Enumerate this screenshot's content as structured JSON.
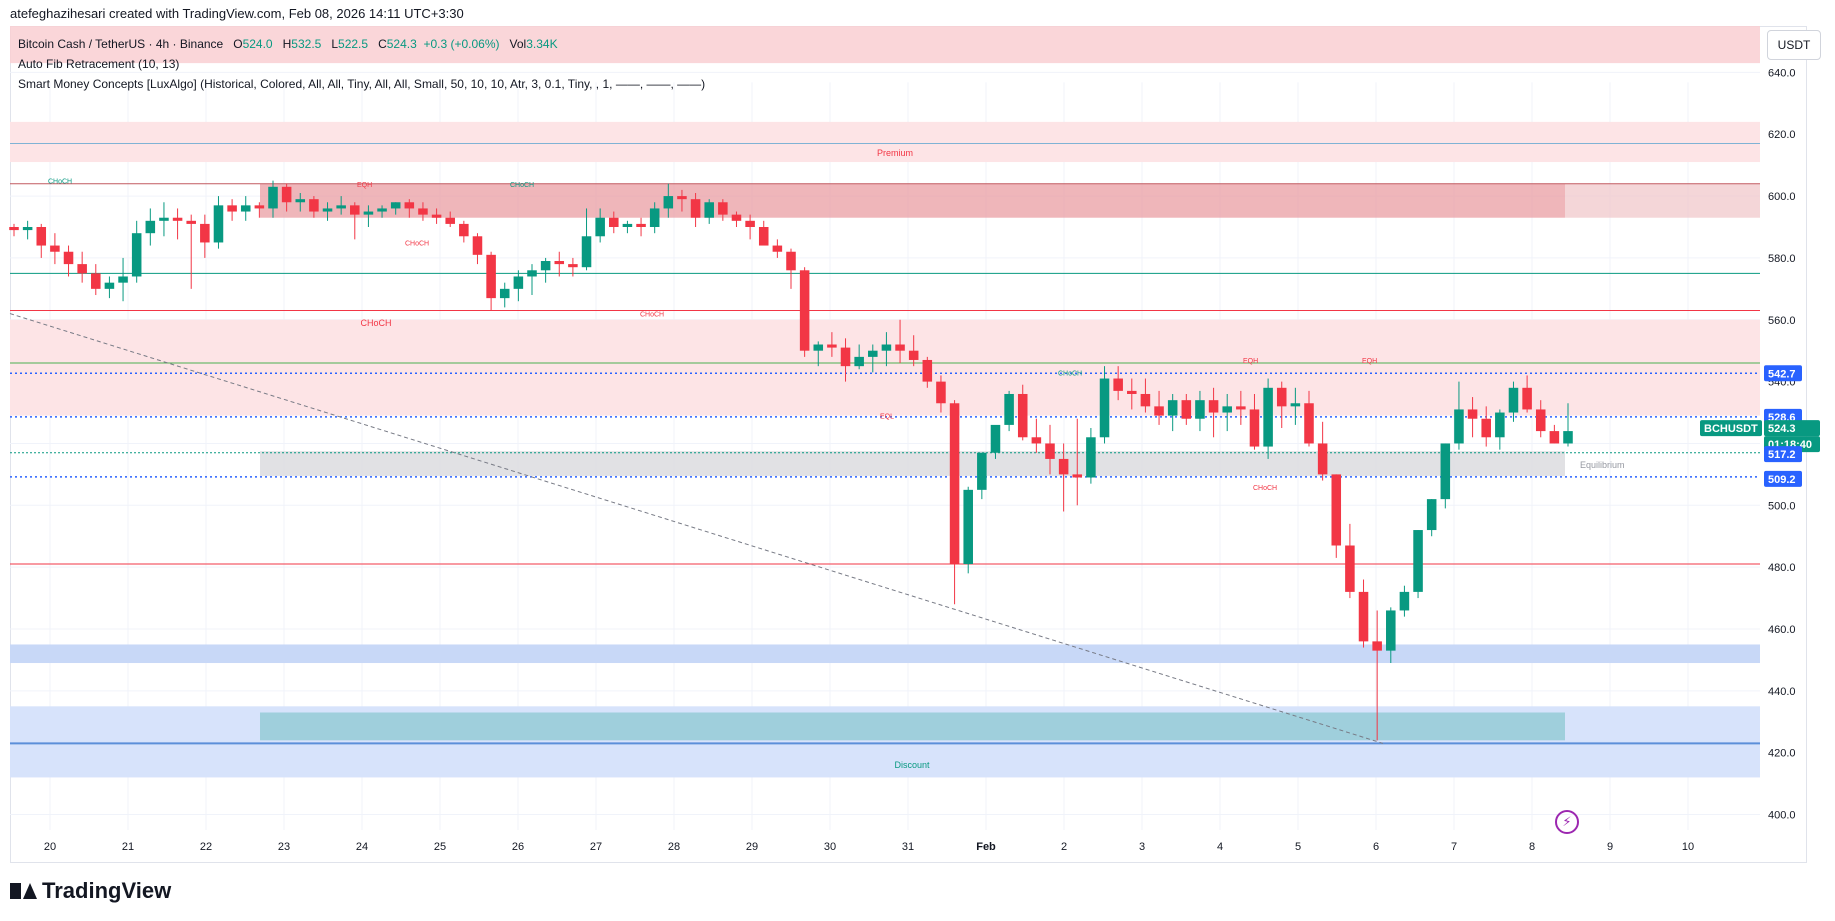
{
  "header": {
    "text": "atefeghazihesari created with TradingView.com, Feb 08, 2026 14:11 UTC+3:30"
  },
  "legend": {
    "symbol": "Bitcoin Cash / TetherUS · 4h · Binance",
    "o_label": "O",
    "o_value": "524.0",
    "h_label": "H",
    "h_value": "532.5",
    "l_label": "L",
    "l_value": "522.5",
    "c_label": "C",
    "c_value": "524.3",
    "change": "+0.3 (+0.06%)",
    "vol_label": "Vol",
    "vol_value": "3.34K",
    "indicator1": "Auto Fib Retracement (10, 13)",
    "indicator2": "Smart Money Concepts [LuxAlgo] (Historical, Colored, All, All, Tiny, All, All, Small, 50, 10, 10, Atr, 3, 0.1, Tiny, , 1, ——, ——, ——)"
  },
  "currency_button": "USDT",
  "logo_text": "TradingView",
  "colors": {
    "up": "#089981",
    "down": "#f23645",
    "premium": "#f7c6c9",
    "discount": "#c8d8f7",
    "blue_label": "#2962ff",
    "green_label": "#089981"
  },
  "chart_data": {
    "type": "candlestick",
    "symbol": "BCHUSDT",
    "timeframe": "4h",
    "ylim": [
      395,
      655
    ],
    "y_ticks": [
      400,
      420,
      440,
      460,
      480,
      500,
      520,
      540,
      560,
      580,
      600,
      620,
      640
    ],
    "y_tick_labels": [
      "400.0",
      "420.0",
      "440.0",
      "460.0",
      "480.0",
      "500.0",
      "520.0",
      "540.0",
      "560.0",
      "580.0",
      "600.0",
      "620.0",
      "640.0"
    ],
    "x_ticks": [
      "20",
      "21",
      "22",
      "23",
      "24",
      "25",
      "26",
      "27",
      "28",
      "29",
      "30",
      "31",
      "Feb",
      "2",
      "3",
      "4",
      "5",
      "6",
      "7",
      "8",
      "9",
      "10"
    ],
    "candles": [
      [
        590,
        591,
        587,
        589
      ],
      [
        589,
        592,
        586,
        590
      ],
      [
        590,
        591,
        580,
        584
      ],
      [
        584,
        588,
        578,
        582
      ],
      [
        582,
        584,
        574,
        578
      ],
      [
        578,
        582,
        572,
        575
      ],
      [
        575,
        578,
        568,
        570
      ],
      [
        570,
        574,
        567,
        572
      ],
      [
        572,
        580,
        566,
        574
      ],
      [
        574,
        592,
        572,
        588
      ],
      [
        588,
        596,
        584,
        592
      ],
      [
        592,
        598,
        587,
        593
      ],
      [
        593,
        596,
        586,
        592
      ],
      [
        592,
        594,
        570,
        591
      ],
      [
        591,
        594,
        580,
        585
      ],
      [
        585,
        600,
        583,
        597
      ],
      [
        597,
        599,
        592,
        595
      ],
      [
        595,
        600,
        592,
        597
      ],
      [
        597,
        598,
        593,
        596
      ],
      [
        596,
        605,
        593,
        603
      ],
      [
        603,
        604,
        595,
        598
      ],
      [
        598,
        601,
        595,
        599
      ],
      [
        599,
        600,
        593,
        595
      ],
      [
        595,
        598,
        592,
        596
      ],
      [
        596,
        600,
        594,
        597
      ],
      [
        597,
        598,
        586,
        594
      ],
      [
        594,
        597,
        590,
        595
      ],
      [
        595,
        597,
        593,
        596
      ],
      [
        596,
        598,
        594,
        598
      ],
      [
        598,
        599,
        593,
        596
      ],
      [
        596,
        598,
        592,
        594
      ],
      [
        594,
        596,
        591,
        593
      ],
      [
        593,
        595,
        590,
        591
      ],
      [
        591,
        592,
        585,
        587
      ],
      [
        587,
        588,
        578,
        581
      ],
      [
        581,
        582,
        563,
        567
      ],
      [
        567,
        572,
        564,
        570
      ],
      [
        570,
        576,
        566,
        574
      ],
      [
        574,
        578,
        568,
        576
      ],
      [
        576,
        580,
        572,
        579
      ],
      [
        579,
        582,
        574,
        578
      ],
      [
        578,
        580,
        574,
        577
      ],
      [
        577,
        596,
        576,
        587
      ],
      [
        587,
        596,
        585,
        593
      ],
      [
        593,
        595,
        588,
        590
      ],
      [
        590,
        592,
        588,
        591
      ],
      [
        591,
        593,
        587,
        590
      ],
      [
        590,
        598,
        588,
        596
      ],
      [
        596,
        604,
        593,
        600
      ],
      [
        600,
        602,
        595,
        599
      ],
      [
        599,
        601,
        590,
        593
      ],
      [
        593,
        599,
        591,
        598
      ],
      [
        598,
        599,
        592,
        594
      ],
      [
        594,
        595,
        590,
        592
      ],
      [
        592,
        594,
        586,
        590
      ],
      [
        590,
        592,
        585,
        584
      ],
      [
        584,
        586,
        580,
        582
      ],
      [
        582,
        583,
        570,
        576
      ],
      [
        576,
        577,
        548,
        550
      ],
      [
        550,
        553,
        545,
        552
      ],
      [
        552,
        556,
        548,
        551
      ],
      [
        551,
        554,
        540,
        545
      ],
      [
        545,
        552,
        544,
        548
      ],
      [
        548,
        552,
        543,
        550
      ],
      [
        550,
        556,
        545,
        552
      ],
      [
        552,
        560,
        546,
        550
      ],
      [
        550,
        555,
        545,
        547
      ],
      [
        547,
        548,
        538,
        540
      ],
      [
        540,
        542,
        530,
        533
      ],
      [
        533,
        534,
        468,
        481
      ],
      [
        481,
        506,
        478,
        505
      ],
      [
        505,
        515,
        502,
        517
      ],
      [
        517,
        525,
        515,
        526
      ],
      [
        526,
        537,
        524,
        536
      ],
      [
        536,
        539,
        521,
        522
      ],
      [
        522,
        528,
        517,
        520
      ],
      [
        520,
        526,
        510,
        515
      ],
      [
        515,
        520,
        498,
        510
      ],
      [
        510,
        528,
        500,
        509
      ],
      [
        509,
        525,
        507,
        522
      ],
      [
        522,
        545,
        520,
        541
      ],
      [
        541,
        545,
        534,
        537
      ],
      [
        537,
        541,
        531,
        536
      ],
      [
        536,
        541,
        530,
        532
      ],
      [
        532,
        537,
        526,
        529
      ],
      [
        529,
        536,
        524,
        534
      ],
      [
        534,
        536,
        526,
        528
      ],
      [
        528,
        537,
        524,
        534
      ],
      [
        534,
        538,
        522,
        530
      ],
      [
        530,
        536,
        524,
        532
      ],
      [
        532,
        537,
        526,
        531
      ],
      [
        531,
        536,
        518,
        519
      ],
      [
        519,
        541,
        515,
        538
      ],
      [
        538,
        540,
        525,
        532
      ],
      [
        532,
        538,
        526,
        533
      ],
      [
        533,
        537,
        519,
        520
      ],
      [
        520,
        527,
        508,
        510
      ],
      [
        510,
        510,
        483,
        487
      ],
      [
        487,
        494,
        470,
        472
      ],
      [
        472,
        476,
        454,
        456
      ],
      [
        456,
        466,
        424,
        453
      ],
      [
        453,
        467,
        449,
        466
      ],
      [
        466,
        474,
        464,
        472
      ],
      [
        472,
        492,
        470,
        492
      ],
      [
        492,
        502,
        490,
        502
      ],
      [
        502,
        520,
        499,
        520
      ],
      [
        520,
        540,
        518,
        531
      ],
      [
        531,
        535,
        522,
        528
      ],
      [
        528,
        532,
        519,
        522
      ],
      [
        522,
        531,
        518,
        530
      ],
      [
        530,
        540,
        527,
        538
      ],
      [
        538,
        542,
        530,
        531
      ],
      [
        531,
        534,
        522,
        524
      ],
      [
        524,
        526,
        520,
        520
      ],
      [
        520,
        533,
        519,
        524
      ]
    ],
    "price_labels": [
      {
        "text": "542.7",
        "value": 542.7,
        "color": "#2962ff"
      },
      {
        "text": "528.6",
        "value": 528.6,
        "color": "#2962ff"
      },
      {
        "text": "BCHUSDT",
        "value": 524.3,
        "color": "#089981"
      },
      {
        "text": "524.3",
        "value": 524.3,
        "color": "#089981"
      },
      {
        "text": "01:18:40",
        "value": 524.3,
        "color": "#089981"
      },
      {
        "text": "517.2",
        "value": 517.2,
        "color": "#2962ff"
      },
      {
        "text": "509.2",
        "value": 509.2,
        "color": "#2962ff"
      }
    ],
    "zones": [
      {
        "name": "Premium",
        "top": 640,
        "bottom": 630,
        "color": "#f7c6c9"
      },
      {
        "name": "Premium",
        "top": 624,
        "bottom": 611,
        "color": "#fbe0e2"
      },
      {
        "name": "Discount",
        "top": 435,
        "bottom": 412,
        "color": "#cfdcfa"
      }
    ],
    "labels": {
      "premium": "Premium",
      "discount": "Discount",
      "equilibrium": "Equilibrium",
      "choch": "CHoCH",
      "eqh": "EQH",
      "eql": "EQL"
    }
  }
}
